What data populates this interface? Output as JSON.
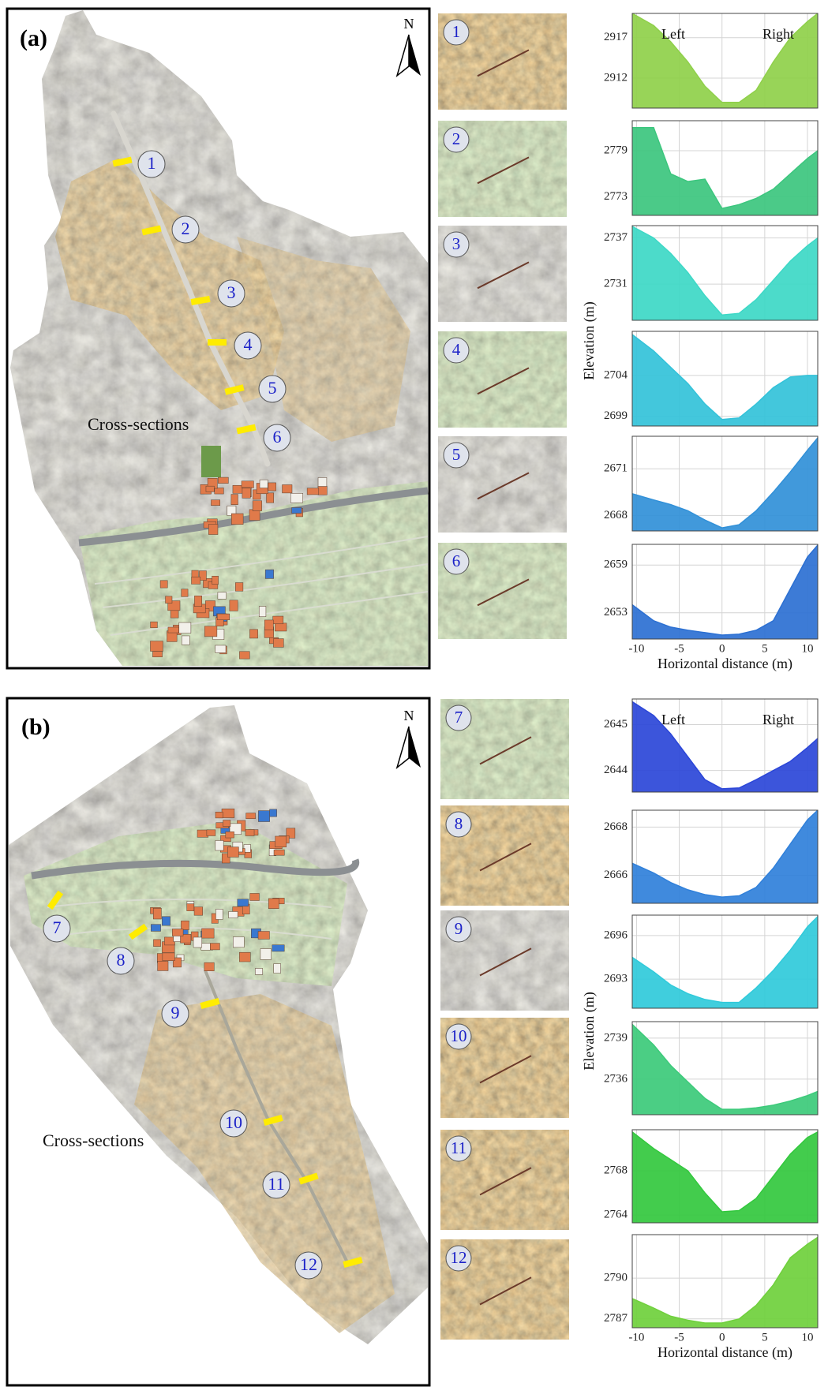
{
  "panels": [
    {
      "label": "(a)",
      "north": "N",
      "map_label": "Cross-sections",
      "sections": [
        "1",
        "2",
        "3",
        "4",
        "5",
        "6"
      ]
    },
    {
      "label": "(b)",
      "north": "N",
      "map_label": "Cross-sections",
      "sections": [
        "7",
        "8",
        "9",
        "10",
        "11",
        "12"
      ]
    }
  ],
  "chart_data": [
    {
      "type": "area",
      "color": "#8fd04a",
      "annotations": [
        "Left",
        "Right"
      ],
      "x": [
        -10.5,
        -8,
        -6,
        -4,
        -2,
        0,
        2,
        4,
        6,
        8,
        10,
        11.2
      ],
      "values": [
        2920,
        2918.5,
        2916.5,
        2914,
        2911,
        2909,
        2909,
        2910.5,
        2914,
        2917,
        2919,
        2920
      ],
      "xlim": [
        -10.5,
        11.2
      ],
      "xticks": [
        -10,
        -5,
        0,
        5,
        10
      ],
      "ylim": [
        2908.3,
        2920
      ],
      "yticks": [
        2912,
        2917
      ],
      "grid": true
    },
    {
      "type": "area",
      "color": "#3cc67e",
      "x": [
        -10.5,
        -8,
        -6,
        -4,
        -2,
        0,
        2,
        4,
        6,
        8,
        10,
        11.2
      ],
      "values": [
        2782,
        2782,
        2776,
        2775,
        2775.3,
        2771.5,
        2772,
        2772.8,
        2774,
        2776,
        2778,
        2779
      ],
      "xlim": [
        -10.5,
        11.2
      ],
      "xticks": [
        -10,
        -5,
        0,
        5,
        10
      ],
      "ylim": [
        2770.6,
        2782.9
      ],
      "yticks": [
        2773,
        2779
      ],
      "grid": true
    },
    {
      "type": "area",
      "color": "#3dd8c6",
      "x": [
        -10.5,
        -8,
        -6,
        -4,
        -2,
        0,
        2,
        4,
        6,
        8,
        10,
        11.2
      ],
      "values": [
        2738.5,
        2737,
        2735,
        2732.5,
        2729.5,
        2727,
        2727.2,
        2729,
        2731.5,
        2734,
        2736,
        2737
      ],
      "xlim": [
        -10.5,
        11.2
      ],
      "xticks": [
        -10,
        -5,
        0,
        5,
        10
      ],
      "ylim": [
        2726.3,
        2738.6
      ],
      "yticks": [
        2731,
        2737
      ],
      "grid": true
    },
    {
      "type": "area",
      "color": "#33c2d9",
      "ylabel": "Elevation (m)",
      "x": [
        -10.5,
        -8,
        -6,
        -4,
        -2,
        0,
        2,
        4,
        6,
        8,
        10,
        11.2
      ],
      "values": [
        2709,
        2707,
        2705,
        2703,
        2700.5,
        2698.6,
        2698.8,
        2700.5,
        2702.5,
        2703.8,
        2704,
        2704
      ],
      "xlim": [
        -10.5,
        11.2
      ],
      "xticks": [
        -10,
        -5,
        0,
        5,
        10
      ],
      "ylim": [
        2697.8,
        2709.4
      ],
      "yticks": [
        2699,
        2704
      ],
      "grid": true
    },
    {
      "type": "area",
      "color": "#3190d8",
      "x": [
        -10.5,
        -8,
        -6,
        -4,
        -2,
        0,
        2,
        4,
        6,
        8,
        10,
        11.2
      ],
      "values": [
        2669.4,
        2669,
        2668.7,
        2668.3,
        2667.7,
        2667.2,
        2667.4,
        2668.3,
        2669.5,
        2670.8,
        2672.2,
        2673
      ],
      "xlim": [
        -10.5,
        11.2
      ],
      "xticks": [
        -10,
        -5,
        0,
        5,
        10
      ],
      "ylim": [
        2667,
        2673.1
      ],
      "yticks": [
        2668,
        2671
      ],
      "grid": true
    },
    {
      "type": "area",
      "color": "#2c70d2",
      "xlabel": "Horizontal distance (m)",
      "x": [
        -10.5,
        -8,
        -6,
        -4,
        -2,
        0,
        2,
        4,
        6,
        8,
        10,
        11.2
      ],
      "values": [
        2654,
        2652,
        2651.2,
        2650.8,
        2650.5,
        2650.2,
        2650.3,
        2650.8,
        2652,
        2656,
        2660,
        2661.5
      ],
      "xlim": [
        -10.5,
        11.2
      ],
      "xticks": [
        -10,
        -5,
        0,
        5,
        10
      ],
      "ylim": [
        2649.7,
        2661.6
      ],
      "yticks": [
        2653,
        2659
      ],
      "grid": true
    },
    {
      "type": "area",
      "color": "#2b46d8",
      "annotations": [
        "Left",
        "Right"
      ],
      "x": [
        -10.5,
        -8,
        -6,
        -4,
        -2,
        0,
        2,
        4,
        6,
        8,
        10,
        11.2
      ],
      "values": [
        2645.5,
        2645.2,
        2644.8,
        2644.3,
        2643.8,
        2643.6,
        2643.62,
        2643.8,
        2644,
        2644.2,
        2644.5,
        2644.7
      ],
      "xlim": [
        -10.5,
        11.2
      ],
      "xticks": [
        -10,
        -5,
        0,
        5,
        10
      ],
      "ylim": [
        2643.53,
        2645.56
      ],
      "yticks": [
        2644,
        2645
      ],
      "grid": true
    },
    {
      "type": "area",
      "color": "#3080da",
      "x": [
        -10.5,
        -8,
        -6,
        -4,
        -2,
        0,
        2,
        4,
        6,
        8,
        10,
        11.2
      ],
      "values": [
        2666.5,
        2666.1,
        2665.7,
        2665.4,
        2665.2,
        2665.1,
        2665.15,
        2665.5,
        2666.3,
        2667.3,
        2668.3,
        2668.7
      ],
      "xlim": [
        -10.5,
        11.2
      ],
      "xticks": [
        -10,
        -5,
        0,
        5,
        10
      ],
      "ylim": [
        2664.84,
        2668.7
      ],
      "yticks": [
        2666,
        2668
      ],
      "grid": true
    },
    {
      "type": "area",
      "color": "#30cada",
      "x": [
        -10.5,
        -8,
        -6,
        -4,
        -2,
        0,
        2,
        4,
        6,
        8,
        10,
        11.2
      ],
      "values": [
        2694.5,
        2693.5,
        2692.6,
        2692,
        2691.6,
        2691.4,
        2691.4,
        2692.4,
        2693.6,
        2695,
        2696.6,
        2697.3
      ],
      "xlim": [
        -10.5,
        11.2
      ],
      "xticks": [
        -10,
        -5,
        0,
        5,
        10
      ],
      "ylim": [
        2691,
        2697.4
      ],
      "yticks": [
        2693,
        2696
      ],
      "grid": true
    },
    {
      "type": "area",
      "color": "#3cca7a",
      "ylabel": "Elevation (m)",
      "x": [
        -10.5,
        -8,
        -6,
        -4,
        -2,
        0,
        2,
        4,
        6,
        8,
        10,
        11.2
      ],
      "values": [
        2740,
        2738.5,
        2737,
        2735.8,
        2734.6,
        2733.8,
        2733.8,
        2733.9,
        2734.1,
        2734.4,
        2734.8,
        2735.1
      ],
      "xlim": [
        -10.5,
        11.2
      ],
      "xticks": [
        -10,
        -5,
        0,
        5,
        10
      ],
      "ylim": [
        2733.4,
        2740.2
      ],
      "yticks": [
        2736,
        2739
      ],
      "grid": true
    },
    {
      "type": "area",
      "color": "#33c83e",
      "x": [
        -10.5,
        -8,
        -6,
        -4,
        -2,
        0,
        2,
        4,
        6,
        8,
        10,
        11.2
      ],
      "values": [
        2771.5,
        2770,
        2769,
        2768,
        2766,
        2764.3,
        2764.4,
        2765.5,
        2767.5,
        2769.5,
        2771,
        2771.5
      ],
      "xlim": [
        -10.5,
        11.2
      ],
      "xticks": [
        -10,
        -5,
        0,
        5,
        10
      ],
      "ylim": [
        2763.3,
        2771.7
      ],
      "yticks": [
        2764,
        2768
      ],
      "grid": true
    },
    {
      "type": "area",
      "color": "#6fd03c",
      "xlabel": "Horizontal distance (m)",
      "x": [
        -10.5,
        -8,
        -6,
        -4,
        -2,
        0,
        2,
        4,
        6,
        8,
        10,
        11.2
      ],
      "values": [
        2788.5,
        2787.8,
        2787.2,
        2786.9,
        2786.7,
        2786.7,
        2787,
        2788,
        2789.5,
        2791.5,
        2792.5,
        2793
      ],
      "xlim": [
        -10.5,
        11.2
      ],
      "xticks": [
        -10,
        -5,
        0,
        5,
        10
      ],
      "ylim": [
        2786.35,
        2793.2
      ],
      "yticks": [
        2787,
        2790
      ],
      "grid": true
    }
  ]
}
